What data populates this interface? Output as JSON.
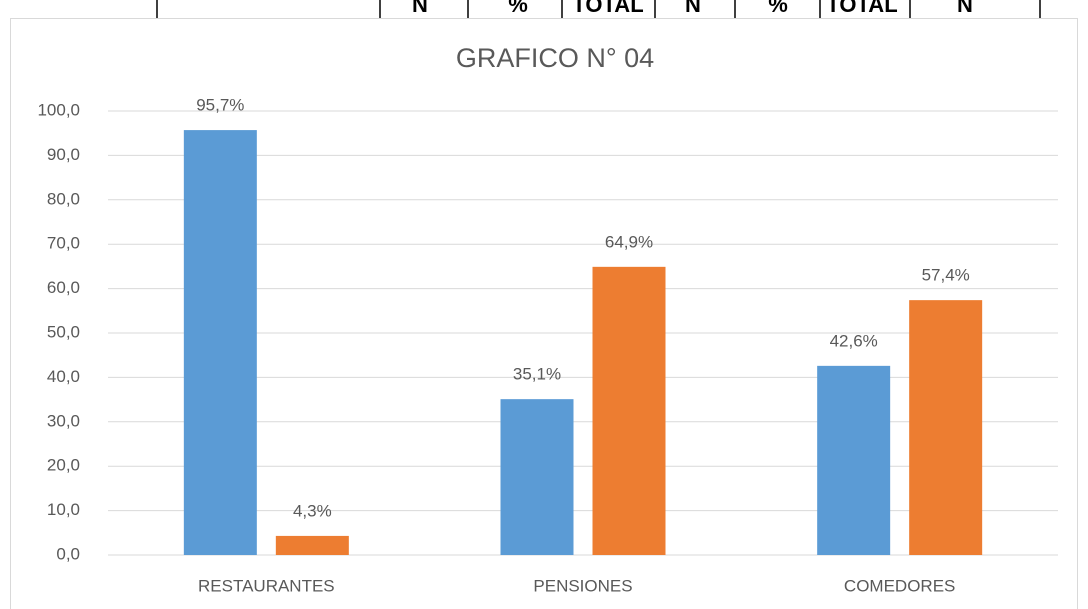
{
  "table_header": [
    "N",
    "%",
    "TOTAL",
    "N",
    "%",
    "TOTAL",
    "N"
  ],
  "chart_data": {
    "type": "bar",
    "title": "GRAFICO N° 04",
    "categories": [
      "RESTAURANTES",
      "PENSIONES",
      "COMEDORES"
    ],
    "series": [
      {
        "color": "#5b9bd5",
        "values": [
          95.7,
          35.1,
          42.6
        ],
        "value_labels": [
          "95,7%",
          "35,1%",
          "42,6%"
        ]
      },
      {
        "color": "#ed7d31",
        "values": [
          4.3,
          64.9,
          57.4
        ],
        "value_labels": [
          "4,3%",
          "64,9%",
          "57,4%"
        ]
      }
    ],
    "ylim": [
      0,
      100
    ],
    "yticks": [
      {
        "value": 0,
        "label": "0,0"
      },
      {
        "value": 10,
        "label": "10,0"
      },
      {
        "value": 20,
        "label": "20,0"
      },
      {
        "value": 30,
        "label": "30,0"
      },
      {
        "value": 40,
        "label": "40,0"
      },
      {
        "value": 50,
        "label": "50,0"
      },
      {
        "value": 60,
        "label": "60,0"
      },
      {
        "value": 70,
        "label": "70,0"
      },
      {
        "value": 80,
        "label": "80,0"
      },
      {
        "value": 90,
        "label": "90,0"
      },
      {
        "value": 100,
        "label": "100,0"
      }
    ],
    "grid": true
  }
}
